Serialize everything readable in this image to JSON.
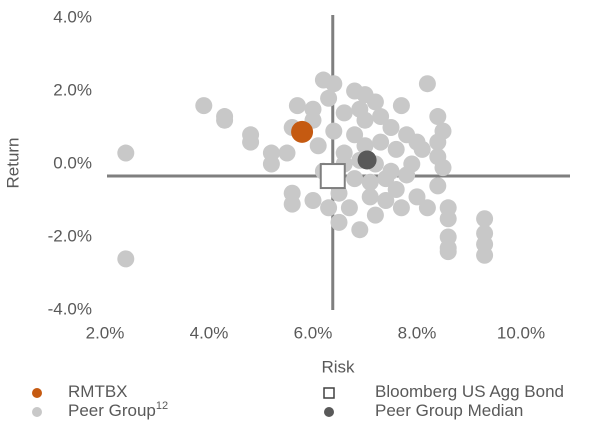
{
  "chart_data": {
    "type": "scatter",
    "xlabel": "Risk",
    "ylabel": "Return",
    "xlim": [
      2,
      11
    ],
    "ylim": [
      -4,
      4
    ],
    "xticks": [
      {
        "value": 2,
        "label": "2.0%"
      },
      {
        "value": 4,
        "label": "4.0%"
      },
      {
        "value": 6,
        "label": "6.0%"
      },
      {
        "value": 8,
        "label": "8.0%"
      },
      {
        "value": 10,
        "label": "10.0%"
      }
    ],
    "yticks": [
      {
        "value": -4,
        "label": "-4.0%"
      },
      {
        "value": -2,
        "label": "-2.0%"
      },
      {
        "value": 0,
        "label": "0.0%"
      },
      {
        "value": 2,
        "label": "2.0%"
      },
      {
        "value": 4,
        "label": "4.0%"
      }
    ],
    "crosshair_color": "#7f7f7f",
    "series": [
      {
        "name": "Peer Group",
        "note_ref": "12",
        "color": "#c8c8c8",
        "marker": "circle",
        "x": [
          2.4,
          2.4,
          3.9,
          4.3,
          4.3,
          4.8,
          4.8,
          5.2,
          5.2,
          5.6,
          5.6,
          5.7,
          5.6,
          5.5,
          6.0,
          6.0,
          6.2,
          6.4,
          6.8,
          7.0,
          7.2,
          7.7,
          8.2,
          8.4,
          8.5,
          8.4,
          8.4,
          8.5,
          8.4,
          8.2,
          8.6,
          8.6,
          8.6,
          8.6,
          8.6,
          9.3,
          9.3,
          9.3,
          9.3,
          8.0,
          7.7,
          7.2,
          6.9,
          6.5,
          6.3,
          6.0,
          6.2,
          6.6,
          6.8,
          7.0,
          7.2,
          7.4,
          7.6,
          7.8,
          7.5,
          7.0,
          6.6,
          6.4,
          6.5,
          7.1,
          7.6,
          7.9,
          8.1,
          6.8,
          7.3,
          6.7,
          7.4,
          6.1,
          6.9,
          7.5,
          6.3,
          6.9,
          7.3,
          7.8,
          8.0,
          6.6,
          7.1,
          6.4
        ],
        "y": [
          0.3,
          -2.6,
          1.6,
          1.3,
          1.2,
          0.8,
          0.6,
          0.3,
          0.0,
          -0.8,
          -1.1,
          1.6,
          1.0,
          0.3,
          1.2,
          1.5,
          2.3,
          2.2,
          2.0,
          1.9,
          1.7,
          1.6,
          2.2,
          1.3,
          0.9,
          0.6,
          0.2,
          -0.1,
          -0.6,
          -1.2,
          -1.2,
          -1.5,
          -2.0,
          -2.3,
          -2.4,
          -1.5,
          -1.9,
          -2.2,
          -2.5,
          -0.9,
          -1.2,
          -1.4,
          -1.8,
          -1.6,
          -1.2,
          -1.0,
          -0.2,
          0.3,
          0.8,
          0.5,
          0.0,
          -0.4,
          0.4,
          0.8,
          1.0,
          1.2,
          1.4,
          0.9,
          -0.8,
          -0.9,
          -0.7,
          0.0,
          0.4,
          -0.4,
          0.6,
          -1.2,
          -1.0,
          0.5,
          0.1,
          -0.2,
          1.8,
          1.5,
          1.3,
          -0.3,
          0.6,
          0.0,
          -0.5,
          -0.4
        ]
      },
      {
        "name": "RMTBX",
        "color": "#c55a11",
        "marker": "circle",
        "x": [
          5.79
        ],
        "y": [
          0.88
        ]
      },
      {
        "name": "Peer Group Median",
        "color": "#595959",
        "marker": "circle",
        "x": [
          7.04
        ],
        "y": [
          0.11
        ]
      },
      {
        "name": "Bloomberg US Agg Bond",
        "color": "#7f7f7f",
        "marker": "square",
        "x": [
          6.38
        ],
        "y": [
          -0.33
        ]
      }
    ]
  }
}
